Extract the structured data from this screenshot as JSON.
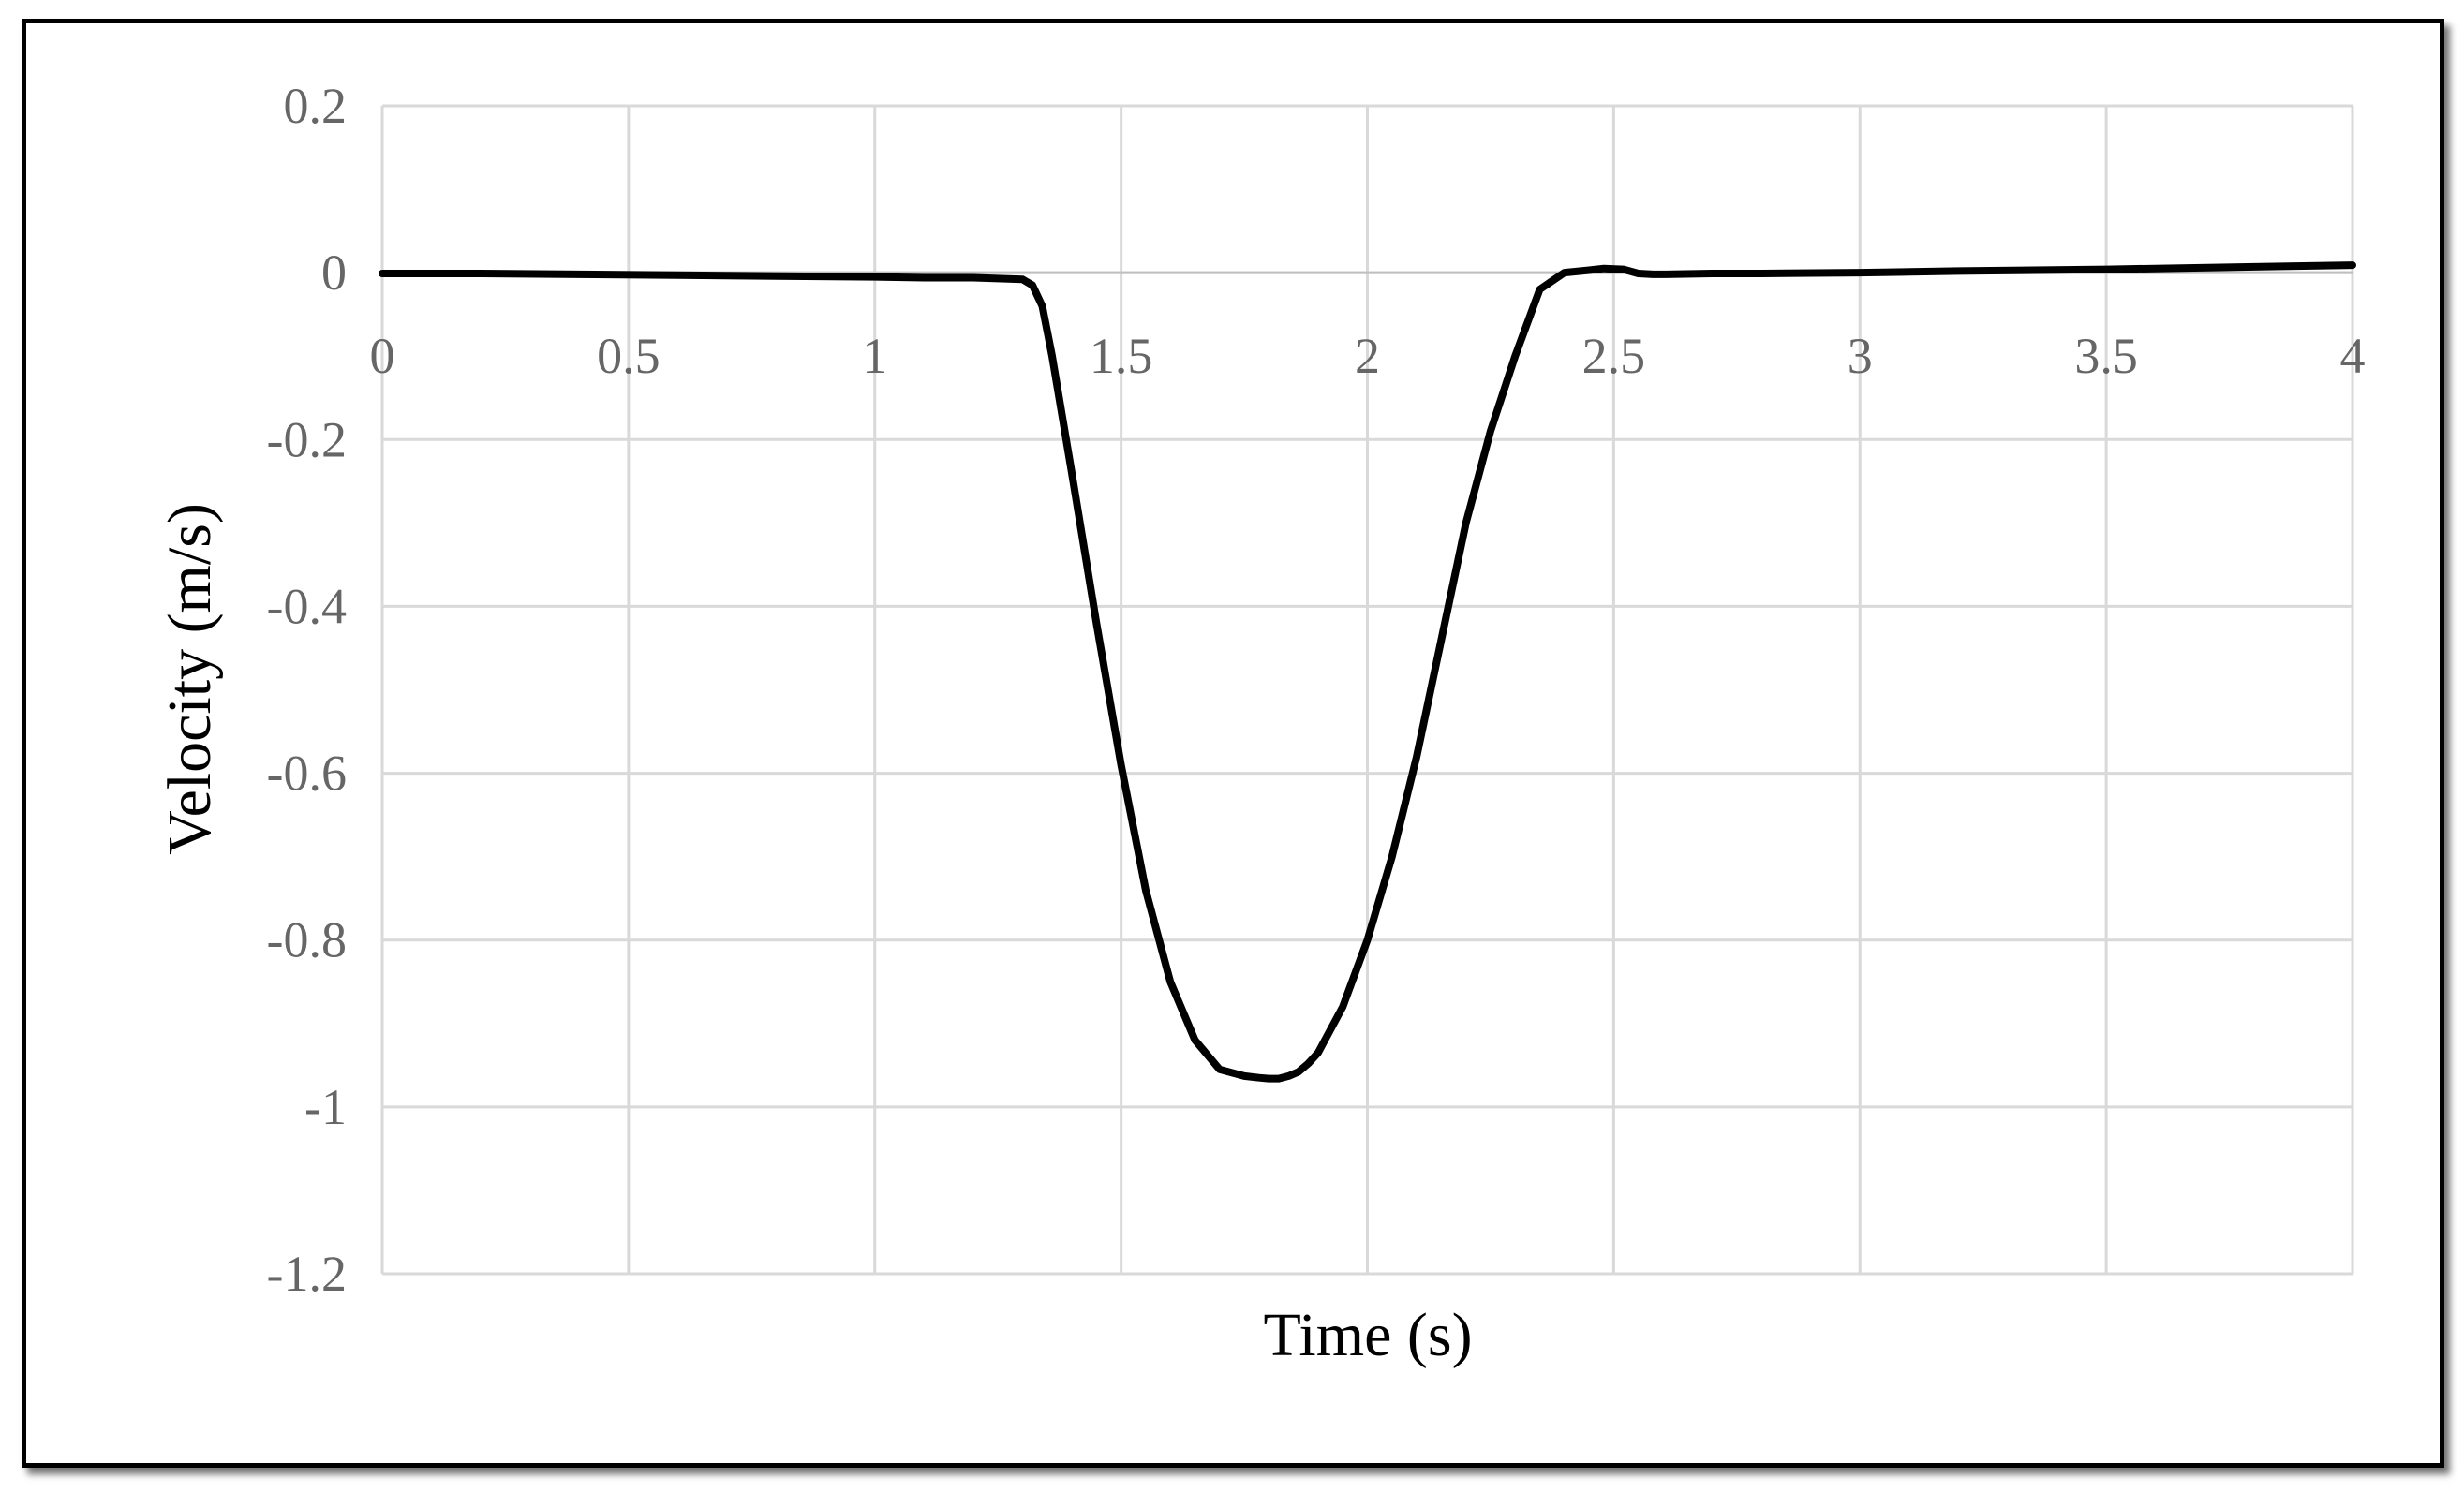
{
  "chart_data": {
    "type": "line",
    "title": "",
    "xlabel": "Time (s)",
    "ylabel": "Velocity (m/s)",
    "xlim": [
      0,
      4
    ],
    "ylim": [
      -1.2,
      0.2
    ],
    "x_ticks": [
      0,
      0.5,
      1,
      1.5,
      2,
      2.5,
      3,
      3.5,
      4
    ],
    "x_tick_labels": [
      "0",
      "0.5",
      "1",
      "1.5",
      "2",
      "2.5",
      "3",
      "3.5",
      "4"
    ],
    "y_ticks": [
      0.2,
      0,
      -0.2,
      -0.4,
      -0.6,
      -0.8,
      -1,
      -1.2
    ],
    "y_tick_labels": [
      "0.2",
      "0",
      "-0.2",
      "-0.4",
      "-0.6",
      "-0.8",
      "-1",
      "-1.2"
    ],
    "x_axis_position": 0,
    "grid": true,
    "legend": "none",
    "colors": {
      "line": "#000000",
      "grid": "#d9d9d9",
      "tick_text": "#666666",
      "frame": "#000000"
    },
    "series": [
      {
        "x": [
          0,
          0.2,
          0.4,
          0.6,
          0.8,
          1.0,
          1.1,
          1.2,
          1.3,
          1.32,
          1.34,
          1.36,
          1.38,
          1.4,
          1.45,
          1.5,
          1.55,
          1.6,
          1.65,
          1.7,
          1.75,
          1.78,
          1.8,
          1.82,
          1.84,
          1.86,
          1.88,
          1.9,
          1.95,
          2.0,
          2.05,
          2.1,
          2.15,
          2.2,
          2.25,
          2.3,
          2.35,
          2.4,
          2.45,
          2.48,
          2.52,
          2.55,
          2.58,
          2.6,
          2.7,
          2.8,
          3.0,
          3.2,
          3.5,
          3.8,
          4.0
        ],
        "y": [
          -0.001,
          -0.001,
          -0.002,
          -0.003,
          -0.004,
          -0.005,
          -0.006,
          -0.006,
          -0.008,
          -0.015,
          -0.04,
          -0.1,
          -0.17,
          -0.24,
          -0.42,
          -0.59,
          -0.74,
          -0.85,
          -0.92,
          -0.955,
          -0.963,
          -0.965,
          -0.966,
          -0.966,
          -0.963,
          -0.958,
          -0.948,
          -0.935,
          -0.88,
          -0.8,
          -0.7,
          -0.58,
          -0.44,
          -0.3,
          -0.19,
          -0.1,
          -0.02,
          0.0,
          0.003,
          0.005,
          0.004,
          -0.001,
          -0.002,
          -0.002,
          -0.001,
          -0.001,
          0.0,
          0.002,
          0.004,
          0.007,
          0.009
        ]
      }
    ]
  }
}
